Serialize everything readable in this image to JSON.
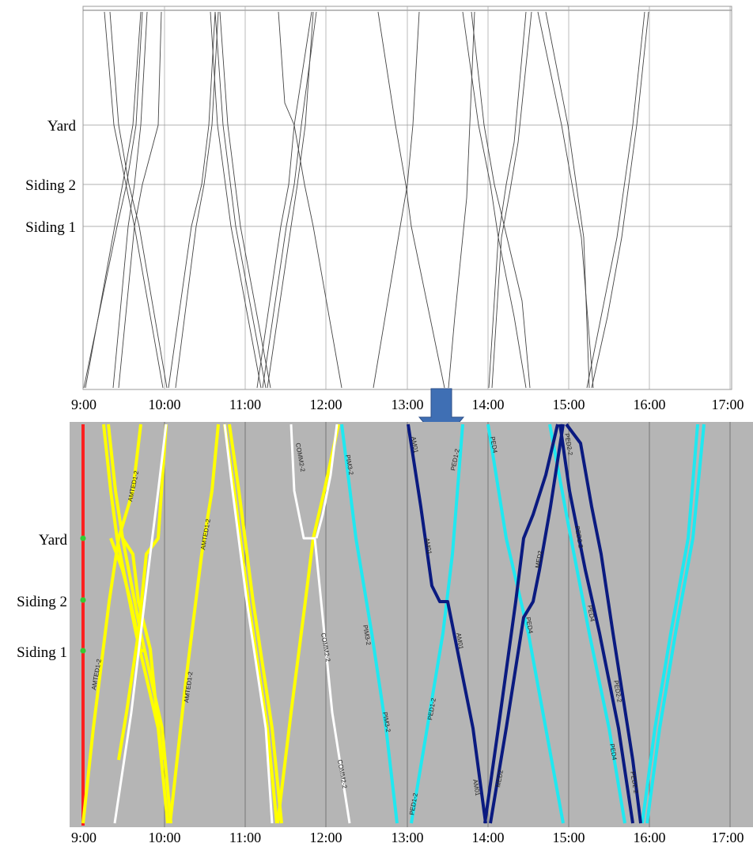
{
  "time_ticks": [
    "9:00",
    "10:00",
    "11:00",
    "12:00",
    "13:00",
    "14:00",
    "15:00",
    "16:00",
    "17:00"
  ],
  "stations": [
    {
      "label": "Yard"
    },
    {
      "label": "Siding 2"
    },
    {
      "label": "Siding 1"
    }
  ],
  "colors": {
    "top_line": "#555555",
    "grid": "#888888",
    "lower_bg": "#b5b5b5",
    "red_axis": "#ff2020",
    "station_dot": "#33cc33",
    "yellow": "#ffff00",
    "white": "#ffffff",
    "cyan": "#20e8f0",
    "navy": "#0a1a80",
    "arrow": "#3f6fb4"
  },
  "train_labels": [
    {
      "text": "AMTED1-2"
    },
    {
      "text": "AMTED1-2"
    },
    {
      "text": "AMTED1-2"
    },
    {
      "text": "AMTED1-2"
    },
    {
      "text": "COMM2-2"
    },
    {
      "text": "COMM2-2"
    },
    {
      "text": "COMM2-2"
    },
    {
      "text": "PIM3-2"
    },
    {
      "text": "PIM3-2"
    },
    {
      "text": "PIM3-2"
    },
    {
      "text": "PED1-2"
    },
    {
      "text": "PED1-2"
    },
    {
      "text": "PED1-2"
    },
    {
      "text": "AM01"
    },
    {
      "text": "AM01"
    },
    {
      "text": "AM01"
    },
    {
      "text": "AM01"
    },
    {
      "text": "MED2"
    },
    {
      "text": "MED2"
    },
    {
      "text": "PED4"
    },
    {
      "text": "PED4"
    },
    {
      "text": "PED4"
    },
    {
      "text": "PED4"
    },
    {
      "text": "PED2-2"
    },
    {
      "text": "PED2-2"
    },
    {
      "text": "PED2-2"
    },
    {
      "text": "PED2-2"
    }
  ]
}
